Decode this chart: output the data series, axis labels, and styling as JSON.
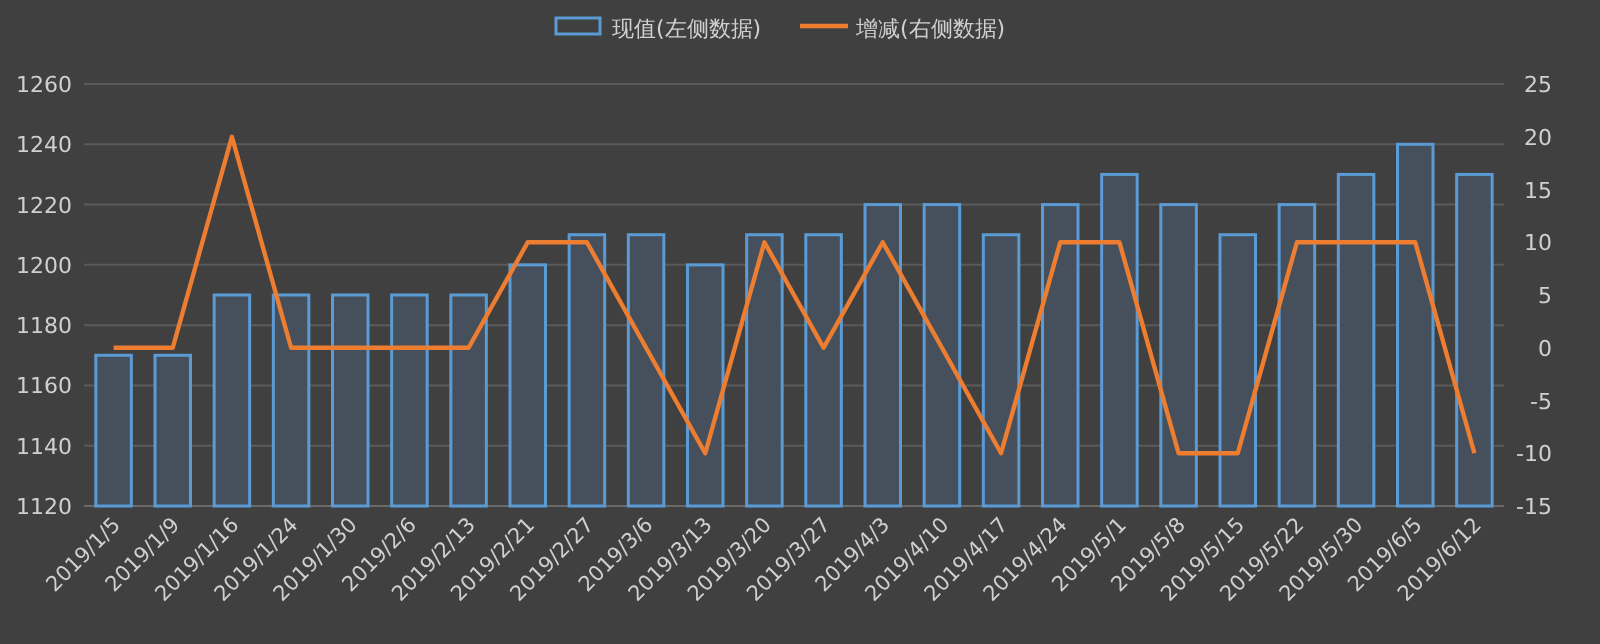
{
  "chart_data": {
    "type": "bar",
    "categories": [
      "2019/1/5",
      "2019/1/9",
      "2019/1/16",
      "2019/1/24",
      "2019/1/30",
      "2019/2/6",
      "2019/2/13",
      "2019/2/21",
      "2019/2/27",
      "2019/3/6",
      "2019/3/13",
      "2019/3/20",
      "2019/3/27",
      "2019/4/3",
      "2019/4/10",
      "2019/4/17",
      "2019/4/24",
      "2019/5/1",
      "2019/5/8",
      "2019/5/15",
      "2019/5/22",
      "2019/5/30",
      "2019/6/5",
      "2019/6/12"
    ],
    "series": [
      {
        "name": "现值(左侧数据)",
        "color": "#5b9bd5",
        "values": [
          1170,
          1170,
          1190,
          1190,
          1190,
          1190,
          1190,
          1200,
          1210,
          1210,
          1200,
          1210,
          1210,
          1220,
          1220,
          1210,
          1220,
          1230,
          1220,
          1210,
          1220,
          1230,
          1240,
          1230
        ]
      },
      {
        "name": "增减(右侧数据)",
        "type": "line",
        "axis": "y2",
        "color": "#ed7d31",
        "values": [
          0,
          0,
          20,
          0,
          0,
          0,
          0,
          10,
          10,
          0,
          -10,
          10,
          0,
          10,
          0,
          -10,
          10,
          10,
          -10,
          -10,
          10,
          10,
          10,
          -10
        ]
      }
    ],
    "ylim": [
      1120,
      1260
    ],
    "yticks": [
      1120,
      1140,
      1160,
      1180,
      1200,
      1220,
      1240,
      1260
    ],
    "y2lim": [
      -15,
      25
    ],
    "y2ticks": [
      -15,
      -10,
      -5,
      0,
      5,
      10,
      15,
      20,
      25
    ],
    "grid": "y",
    "legend": "top",
    "marker": "none",
    "line_style": "solid"
  }
}
